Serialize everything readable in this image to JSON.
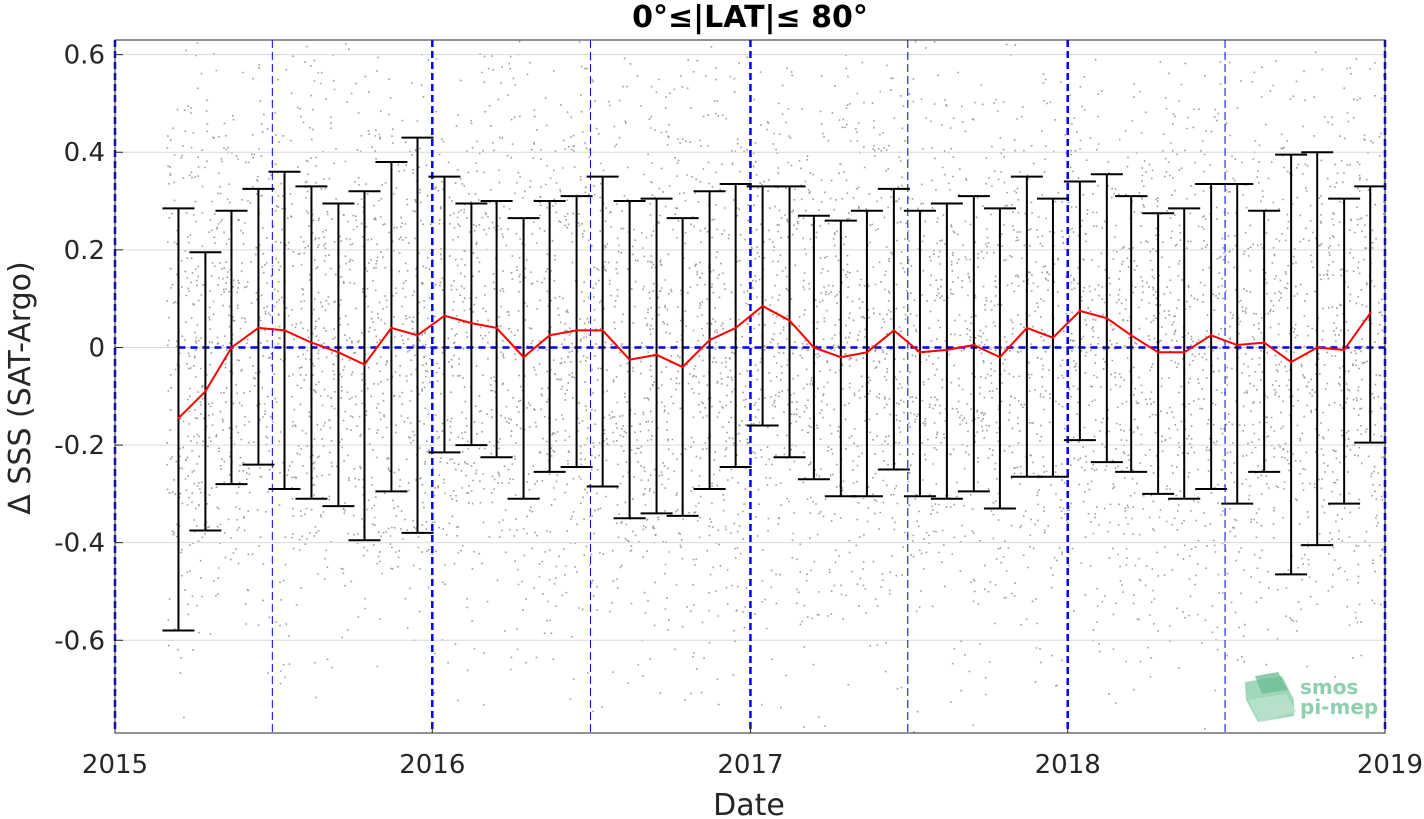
{
  "chart_data": {
    "type": "line",
    "title": "0°≤|LAT|≤ 80°",
    "xlabel": "Date",
    "ylabel": "Δ SSS (SAT-Argo)",
    "xlim": [
      "2015-01-01",
      "2019-01-01"
    ],
    "ylim": [
      -0.79,
      0.63
    ],
    "x_ticks": [
      "2015",
      "2016",
      "2017",
      "2018",
      "2019"
    ],
    "y_ticks": [
      0.6,
      0.4,
      0.2,
      0,
      -0.2,
      -0.4,
      -0.6
    ],
    "y_tick_labels": [
      "0.6",
      "0.4",
      "0.2",
      "0",
      "-0.2",
      "-0.4",
      "-0.6"
    ],
    "grid": true,
    "reference_line": {
      "y": 0,
      "color": "#0000ff",
      "style": "dashed"
    },
    "year_lines": [
      "2015-01-01",
      "2016-01-01",
      "2017-01-01",
      "2018-01-01",
      "2019-01-01"
    ],
    "half_year_lines": [
      "2015-07-01",
      "2016-07-01",
      "2017-07-01",
      "2018-07-01"
    ],
    "scatter": {
      "color": "#8c8c8c",
      "description_ylim": [
        -0.79,
        0.63
      ]
    },
    "series": [
      {
        "style": "line+errorbar",
        "line_color": "#ff0000",
        "errorbar_color": "#000000",
        "x": [
          "2015-03-15",
          "2015-04-15",
          "2015-05-15",
          "2015-06-15",
          "2015-07-15",
          "2015-08-15",
          "2015-09-15",
          "2015-10-15",
          "2015-11-15",
          "2015-12-15",
          "2016-01-15",
          "2016-02-15",
          "2016-03-15",
          "2016-04-15",
          "2016-05-15",
          "2016-06-15",
          "2016-07-15",
          "2016-08-15",
          "2016-09-15",
          "2016-10-15",
          "2016-11-15",
          "2016-12-15",
          "2017-01-15",
          "2017-02-15",
          "2017-03-15",
          "2017-04-15",
          "2017-05-15",
          "2017-06-15",
          "2017-07-15",
          "2017-08-15",
          "2017-09-15",
          "2017-10-15",
          "2017-11-15",
          "2017-12-15",
          "2018-01-15",
          "2018-02-15",
          "2018-03-15",
          "2018-04-15",
          "2018-05-15",
          "2018-06-15",
          "2018-07-15",
          "2018-08-15",
          "2018-09-15",
          "2018-10-15",
          "2018-11-15",
          "2018-12-15"
        ],
        "y": [
          -0.145,
          -0.09,
          0.0,
          0.04,
          0.035,
          0.01,
          -0.01,
          -0.035,
          0.04,
          0.025,
          0.065,
          0.05,
          0.04,
          -0.02,
          0.025,
          0.035,
          0.035,
          -0.025,
          -0.015,
          -0.04,
          0.015,
          0.04,
          0.085,
          0.055,
          0.0,
          -0.02,
          -0.01,
          0.035,
          -0.01,
          -0.005,
          0.005,
          -0.02,
          0.04,
          0.02,
          0.075,
          0.06,
          0.025,
          -0.01,
          -0.01,
          0.025,
          0.005,
          0.01,
          -0.03,
          0.0,
          -0.005,
          0.07
        ],
        "upper": [
          0.285,
          0.195,
          0.28,
          0.325,
          0.36,
          0.33,
          0.295,
          0.32,
          0.38,
          0.43,
          0.35,
          0.295,
          0.3,
          0.265,
          0.3,
          0.31,
          0.35,
          0.3,
          0.305,
          0.265,
          0.32,
          0.335,
          0.33,
          0.33,
          0.27,
          0.26,
          0.28,
          0.325,
          0.28,
          0.295,
          0.31,
          0.285,
          0.35,
          0.305,
          0.34,
          0.355,
          0.31,
          0.275,
          0.285,
          0.335,
          0.335,
          0.28,
          0.395,
          0.4,
          0.305,
          0.33
        ],
        "lower": [
          -0.58,
          -0.375,
          -0.28,
          -0.24,
          -0.29,
          -0.31,
          -0.325,
          -0.395,
          -0.295,
          -0.38,
          -0.215,
          -0.2,
          -0.225,
          -0.31,
          -0.255,
          -0.245,
          -0.285,
          -0.35,
          -0.34,
          -0.345,
          -0.29,
          -0.245,
          -0.16,
          -0.225,
          -0.27,
          -0.305,
          -0.305,
          -0.25,
          -0.305,
          -0.31,
          -0.295,
          -0.33,
          -0.265,
          -0.265,
          -0.19,
          -0.235,
          -0.255,
          -0.3,
          -0.31,
          -0.29,
          -0.32,
          -0.255,
          -0.465,
          -0.405,
          -0.32,
          -0.195
        ]
      }
    ]
  },
  "logo": {
    "line1": "smos",
    "line2": "pi-mep",
    "color": "#8fcfae"
  }
}
